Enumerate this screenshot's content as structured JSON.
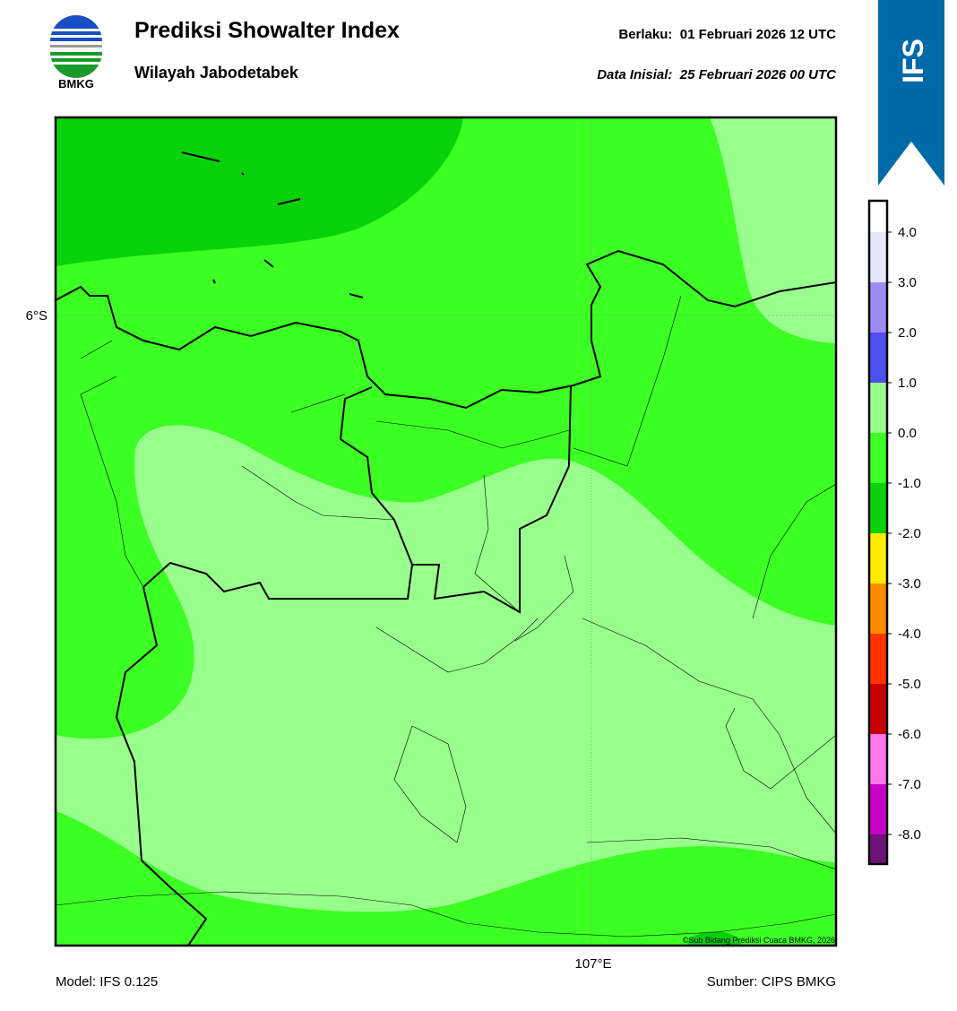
{
  "header": {
    "logo_text": "BMKG",
    "title": "Prediksi Showalter Index",
    "subtitle": "Wilayah Jabodetabek",
    "valid_label": "Berlaku:",
    "valid_time": "01 Februari 2026 12 UTC",
    "init_label": "Data Inisial:",
    "init_time": "25 Februari 2026 00 UTC",
    "model_badge": "IFS"
  },
  "map": {
    "lat_label": "6°S",
    "lon_label": "107°E",
    "credit": "©Sub Bidang Prediksi Cuaca BMKG, 2026"
  },
  "colorbar": {
    "ticks": [
      {
        "value": 4,
        "label": "4.0"
      },
      {
        "value": 3,
        "label": "3.0"
      },
      {
        "value": 2,
        "label": "2.0"
      },
      {
        "value": 1,
        "label": "1.0"
      },
      {
        "value": 0,
        "label": "0.0"
      },
      {
        "value": -1,
        "label": "-1.0"
      },
      {
        "value": -2,
        "label": "-2.0"
      },
      {
        "value": -3,
        "label": "-3.0"
      },
      {
        "value": -4,
        "label": "-4.0"
      },
      {
        "value": -5,
        "label": "-5.0"
      },
      {
        "value": -6,
        "label": "-6.0"
      },
      {
        "value": -7,
        "label": "-7.0"
      },
      {
        "value": -8,
        "label": "-8.0"
      }
    ],
    "colors": [
      "#ffffff",
      "#e6e6fa",
      "#9b8cf5",
      "#5050f0",
      "#99ff8c",
      "#3cff23",
      "#0ad20a",
      "#ffeb00",
      "#ff8c00",
      "#ff3200",
      "#c80000",
      "#ff78eb",
      "#c800c8",
      "#6e1478"
    ]
  },
  "footer": {
    "model": "Model: IFS 0.125",
    "source": "Sumber: CIPS BMKG"
  }
}
